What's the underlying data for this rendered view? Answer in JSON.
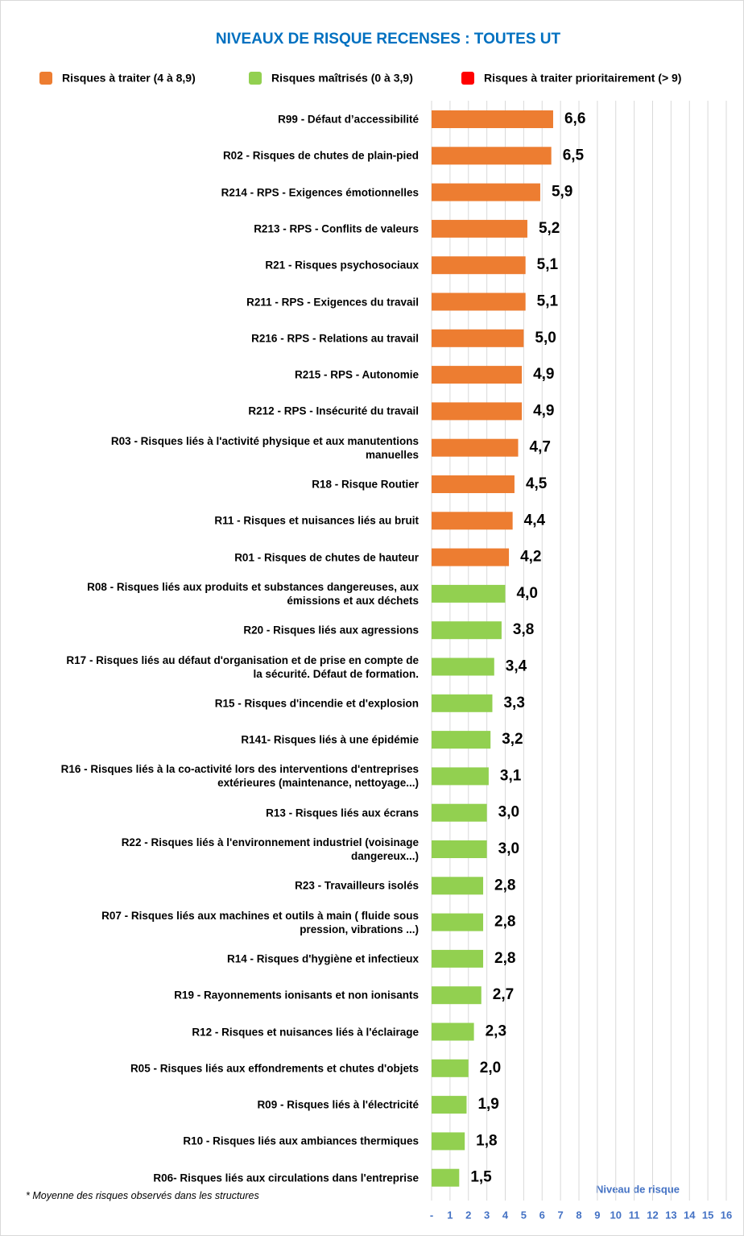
{
  "chart_data": {
    "type": "bar",
    "orientation": "horizontal",
    "title": "NIVEAUX DE RISQUE RECENSES :  TOUTES UT",
    "x_label": "Niveau de risque",
    "footnote": "* Moyenne des risques observés dans les structures",
    "categories": [
      "R99 - Défaut d’accessibilité",
      "R02 - Risques de chutes de plain-pied",
      "R214 - RPS - Exigences émotionnelles",
      "R213 - RPS - Conflits de valeurs",
      "R21 - Risques psychosociaux",
      "R211 - RPS - Exigences du travail",
      "R216 - RPS - Relations au travail",
      "R215 - RPS - Autonomie",
      "R212 - RPS - Insécurité du travail",
      "R03 - Risques liés à l'activité physique et aux manutentions manuelles",
      "R18 - Risque Routier",
      "R11 - Risques et nuisances liés au bruit",
      "R01 - Risques de chutes de hauteur",
      "R08 - Risques liés aux produits et substances dangereuses, aux émissions et aux déchets",
      "R20 - Risques liés aux agressions",
      "R17 - Risques liés au défaut d'organisation et de prise en compte de la sécurité. Défaut de formation.",
      "R15 - Risques d'incendie et d'explosion",
      "R141- Risques liés à une épidémie",
      "R16 - Risques liés à la co-activité lors des interventions d'entreprises extérieures (maintenance, nettoyage...)",
      "R13 - Risques liés aux écrans",
      "R22 - Risques liés à l'environnement industriel (voisinage dangereux...)",
      "R23 - Travailleurs isolés",
      "R07 - Risques liés aux machines et outils à main ( fluide sous pression, vibrations ...)",
      "R14 - Risques d'hygiène et infectieux",
      "R19 - Rayonnements ionisants et non ionisants",
      "R12 - Risques et nuisances liés à l'éclairage",
      "R05 - Risques liés aux effondrements et chutes d'objets",
      "R09 - Risques liés à l'électricité",
      "R10 - Risques liés aux ambiances thermiques",
      "R06- Risques liés aux circulations dans l'entreprise"
    ],
    "series": [
      {
        "name": "Risques à traiter (4 à 8,9)",
        "color": "#ed7d31",
        "values": [
          6.6,
          6.5,
          5.9,
          5.2,
          5.1,
          5.1,
          5.0,
          4.9,
          4.9,
          4.7,
          4.5,
          4.4,
          4.2,
          null,
          null,
          null,
          null,
          null,
          null,
          null,
          null,
          null,
          null,
          null,
          null,
          null,
          null,
          null,
          null,
          null
        ],
        "value_labels": [
          "6,6",
          "6,5",
          "5,9",
          "5,2",
          "5,1",
          "5,1",
          "5,0",
          "4,9",
          "4,9",
          "4,7",
          "4,5",
          "4,4",
          "4,2",
          null,
          null,
          null,
          null,
          null,
          null,
          null,
          null,
          null,
          null,
          null,
          null,
          null,
          null,
          null,
          null,
          null
        ]
      },
      {
        "name": "Risques maîtrisés (0 à 3,9)",
        "color": "#92d050",
        "values": [
          null,
          null,
          null,
          null,
          null,
          null,
          null,
          null,
          null,
          null,
          null,
          null,
          null,
          4.0,
          3.8,
          3.4,
          3.3,
          3.2,
          3.1,
          3.0,
          3.0,
          2.8,
          2.8,
          2.8,
          2.7,
          2.3,
          2.0,
          1.9,
          1.8,
          1.5
        ],
        "value_labels": [
          null,
          null,
          null,
          null,
          null,
          null,
          null,
          null,
          null,
          null,
          null,
          null,
          null,
          "4,0",
          "3,8",
          "3,4",
          "3,3",
          "3,2",
          "3,1",
          "3,0",
          "3,0",
          "2,8",
          "2,8",
          "2,8",
          "2,7",
          "2,3",
          "2,0",
          "1,9",
          "1,8",
          "1,5"
        ]
      },
      {
        "name": "Risques à traiter prioritairement (> 9)",
        "color": "#ff0000",
        "values": [
          null,
          null,
          null,
          null,
          null,
          null,
          null,
          null,
          null,
          null,
          null,
          null,
          null,
          null,
          null,
          null,
          null,
          null,
          null,
          null,
          null,
          null,
          null,
          null,
          null,
          null,
          null,
          null,
          null,
          null
        ],
        "value_labels": [
          null,
          null,
          null,
          null,
          null,
          null,
          null,
          null,
          null,
          null,
          null,
          null,
          null,
          null,
          null,
          null,
          null,
          null,
          null,
          null,
          null,
          null,
          null,
          null,
          null,
          null,
          null,
          null,
          null,
          null
        ]
      }
    ],
    "xlim": [
      0,
      16
    ],
    "xticks": [
      {
        "value": 0,
        "label": "-"
      },
      1,
      2,
      3,
      4,
      5,
      6,
      7,
      8,
      9,
      10,
      11,
      12,
      13,
      14,
      15,
      16
    ],
    "grid": true,
    "legend": "top"
  }
}
